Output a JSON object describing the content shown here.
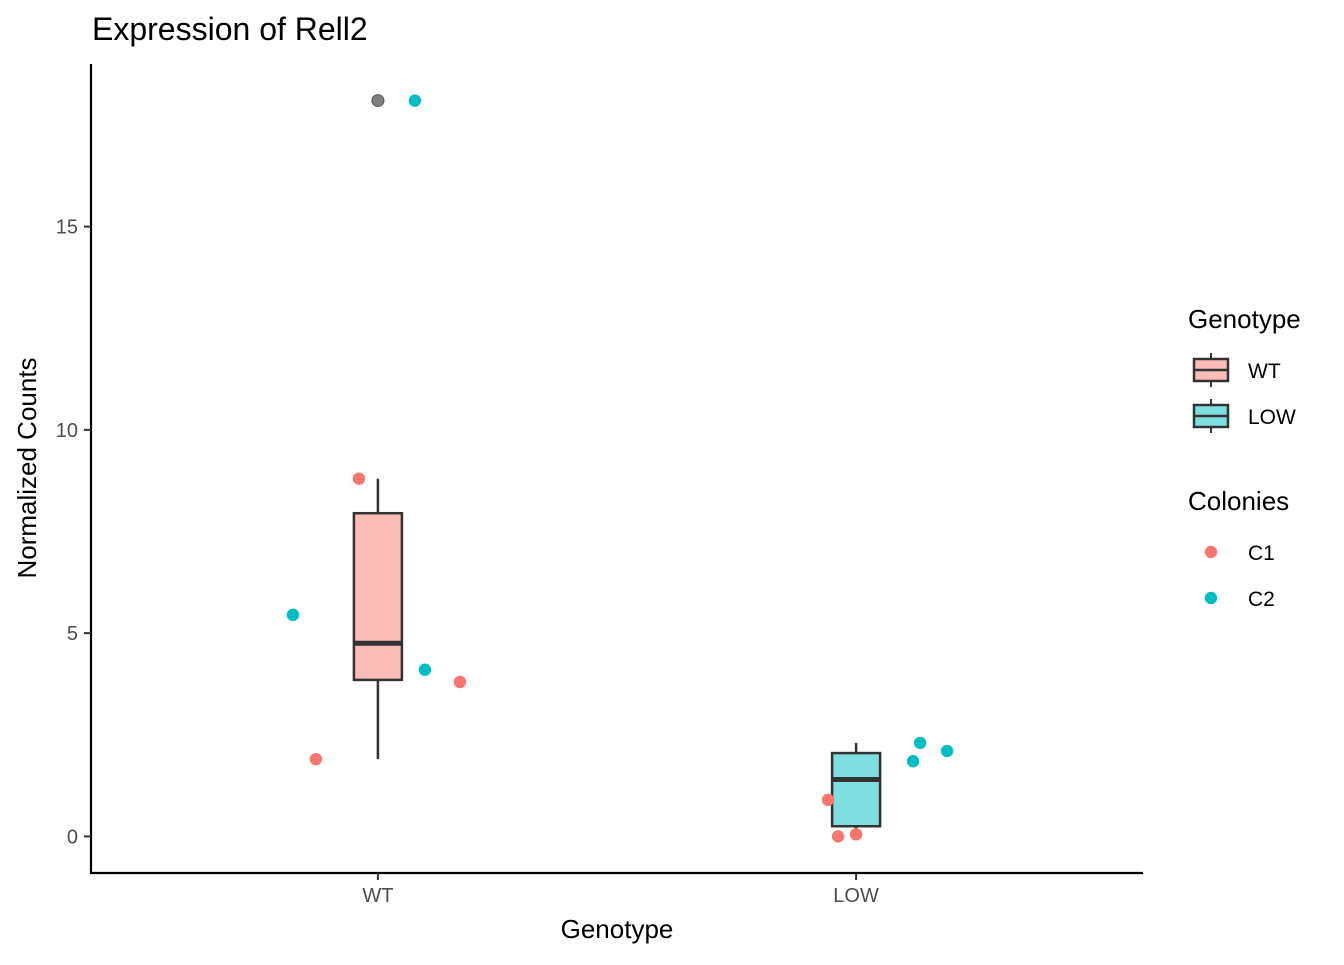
{
  "chart_data": {
    "type": "box",
    "title": "Expression of Rell2",
    "xlabel": "Genotype",
    "ylabel": "Normalized Counts",
    "categories": [
      "WT",
      "LOW"
    ],
    "ylim": [
      -0.9,
      19.0
    ],
    "yticks": [
      0,
      5,
      10,
      15
    ],
    "grid": false,
    "boxes": [
      {
        "category": "WT",
        "fill": "#fbbbb7",
        "min": 1.9,
        "q1": 3.85,
        "median": 4.75,
        "q3": 7.95,
        "max": 8.8,
        "outliers": [
          18.1
        ]
      },
      {
        "category": "LOW",
        "fill": "#7fdfe0",
        "min": 0.05,
        "q1": 0.25,
        "median": 1.4,
        "q3": 2.05,
        "max": 2.3,
        "outliers": []
      }
    ],
    "outlier_color": "#7f7f7f",
    "series": [
      {
        "name": "C1",
        "color": "#f8766d",
        "points": [
          {
            "x": "WT",
            "y": 8.8
          },
          {
            "x": "WT",
            "y": 1.9
          },
          {
            "x": "WT",
            "y": 3.8
          },
          {
            "x": "LOW",
            "y": 0.9
          },
          {
            "x": "LOW",
            "y": 0.0
          },
          {
            "x": "LOW",
            "y": 0.05
          }
        ]
      },
      {
        "name": "C2",
        "color": "#00bfc4",
        "points": [
          {
            "x": "WT",
            "y": 18.1
          },
          {
            "x": "WT",
            "y": 5.45
          },
          {
            "x": "WT",
            "y": 4.1
          },
          {
            "x": "LOW",
            "y": 2.3
          },
          {
            "x": "LOW",
            "y": 1.85
          },
          {
            "x": "LOW",
            "y": 2.1
          }
        ]
      }
    ],
    "legends": [
      {
        "title": "Genotype",
        "kind": "box",
        "entries": [
          {
            "label": "WT",
            "fill": "#fbbbb7"
          },
          {
            "label": "LOW",
            "fill": "#7fdfe0"
          }
        ]
      },
      {
        "title": "Colonies",
        "kind": "point",
        "entries": [
          {
            "label": "C1",
            "color": "#f8766d"
          },
          {
            "label": "C2",
            "color": "#00bfc4"
          }
        ]
      }
    ],
    "legend_position": "right"
  }
}
